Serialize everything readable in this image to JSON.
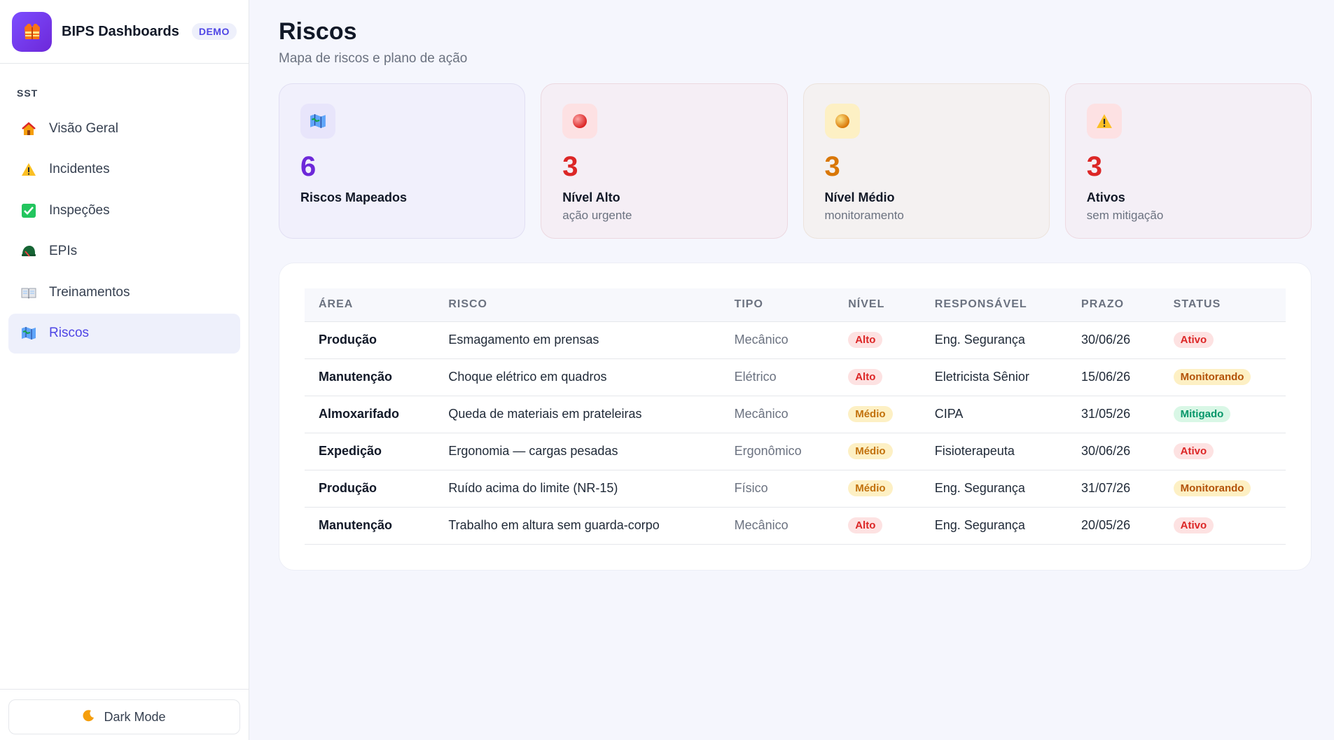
{
  "brand": {
    "name": "BIPS Dashboards",
    "badge": "DEMO"
  },
  "sidebar": {
    "section": "SST",
    "items": [
      {
        "label": "Visão Geral",
        "icon": "house-icon"
      },
      {
        "label": "Incidentes",
        "icon": "warning-icon"
      },
      {
        "label": "Inspeções",
        "icon": "check-icon"
      },
      {
        "label": "EPIs",
        "icon": "helmet-icon"
      },
      {
        "label": "Treinamentos",
        "icon": "book-icon"
      },
      {
        "label": "Riscos",
        "icon": "map-icon",
        "active": true
      }
    ],
    "dark_mode_label": "Dark Mode"
  },
  "page": {
    "title": "Riscos",
    "subtitle": "Mapa de riscos e plano de ação"
  },
  "cards": [
    {
      "value": "6",
      "label": "Riscos Mapeados",
      "sub": "",
      "icon": "map-icon"
    },
    {
      "value": "3",
      "label": "Nível Alto",
      "sub": "ação urgente",
      "icon": "red-circle-icon"
    },
    {
      "value": "3",
      "label": "Nível Médio",
      "sub": "monitoramento",
      "icon": "yellow-circle-icon"
    },
    {
      "value": "3",
      "label": "Ativos",
      "sub": "sem mitigação",
      "icon": "warning-icon"
    }
  ],
  "table": {
    "headers": [
      "ÁREA",
      "RISCO",
      "TIPO",
      "NÍVEL",
      "RESPONSÁVEL",
      "PRAZO",
      "STATUS"
    ],
    "rows": [
      {
        "area": "Produção",
        "risco": "Esmagamento em prensas",
        "tipo": "Mecânico",
        "nivel": "Alto",
        "responsavel": "Eng. Segurança",
        "prazo": "30/06/26",
        "status": "Ativo"
      },
      {
        "area": "Manutenção",
        "risco": "Choque elétrico em quadros",
        "tipo": "Elétrico",
        "nivel": "Alto",
        "responsavel": "Eletricista Sênior",
        "prazo": "15/06/26",
        "status": "Monitorando"
      },
      {
        "area": "Almoxarifado",
        "risco": "Queda de materiais em prateleiras",
        "tipo": "Mecânico",
        "nivel": "Médio",
        "responsavel": "CIPA",
        "prazo": "31/05/26",
        "status": "Mitigado"
      },
      {
        "area": "Expedição",
        "risco": "Ergonomia — cargas pesadas",
        "tipo": "Ergonômico",
        "nivel": "Médio",
        "responsavel": "Fisioterapeuta",
        "prazo": "30/06/26",
        "status": "Ativo"
      },
      {
        "area": "Produção",
        "risco": "Ruído acima do limite (NR-15)",
        "tipo": "Físico",
        "nivel": "Médio",
        "responsavel": "Eng. Segurança",
        "prazo": "31/07/26",
        "status": "Monitorando"
      },
      {
        "area": "Manutenção",
        "risco": "Trabalho em altura sem guarda-corpo",
        "tipo": "Mecânico",
        "nivel": "Alto",
        "responsavel": "Eng. Segurança",
        "prazo": "20/05/26",
        "status": "Ativo"
      }
    ]
  },
  "colors": {
    "accent": "#4f46e5",
    "purple": "#6d28d9",
    "danger": "#dc2626",
    "warning": "#d97706",
    "success": "#059669"
  }
}
